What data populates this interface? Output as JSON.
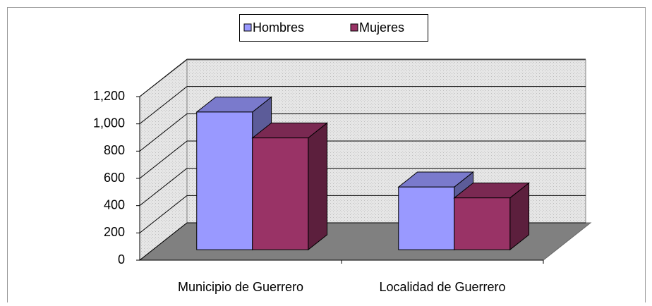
{
  "chart_data": {
    "type": "bar3d",
    "categories": [
      "Municipio de Guerrero",
      "Localidad de Guerrero"
    ],
    "series": [
      {
        "name": "Hombres",
        "color": "#9999ff",
        "values": [
          1010,
          460
        ]
      },
      {
        "name": "Mujeres",
        "color": "#993366",
        "values": [
          820,
          380
        ]
      }
    ],
    "ylim": [
      0,
      1200
    ],
    "yticks": [
      0,
      200,
      400,
      600,
      800,
      {
        "value": 1000,
        "label": "1,000"
      },
      {
        "value": 1200,
        "label": "1,200"
      }
    ],
    "grid": true,
    "legend": "top"
  }
}
